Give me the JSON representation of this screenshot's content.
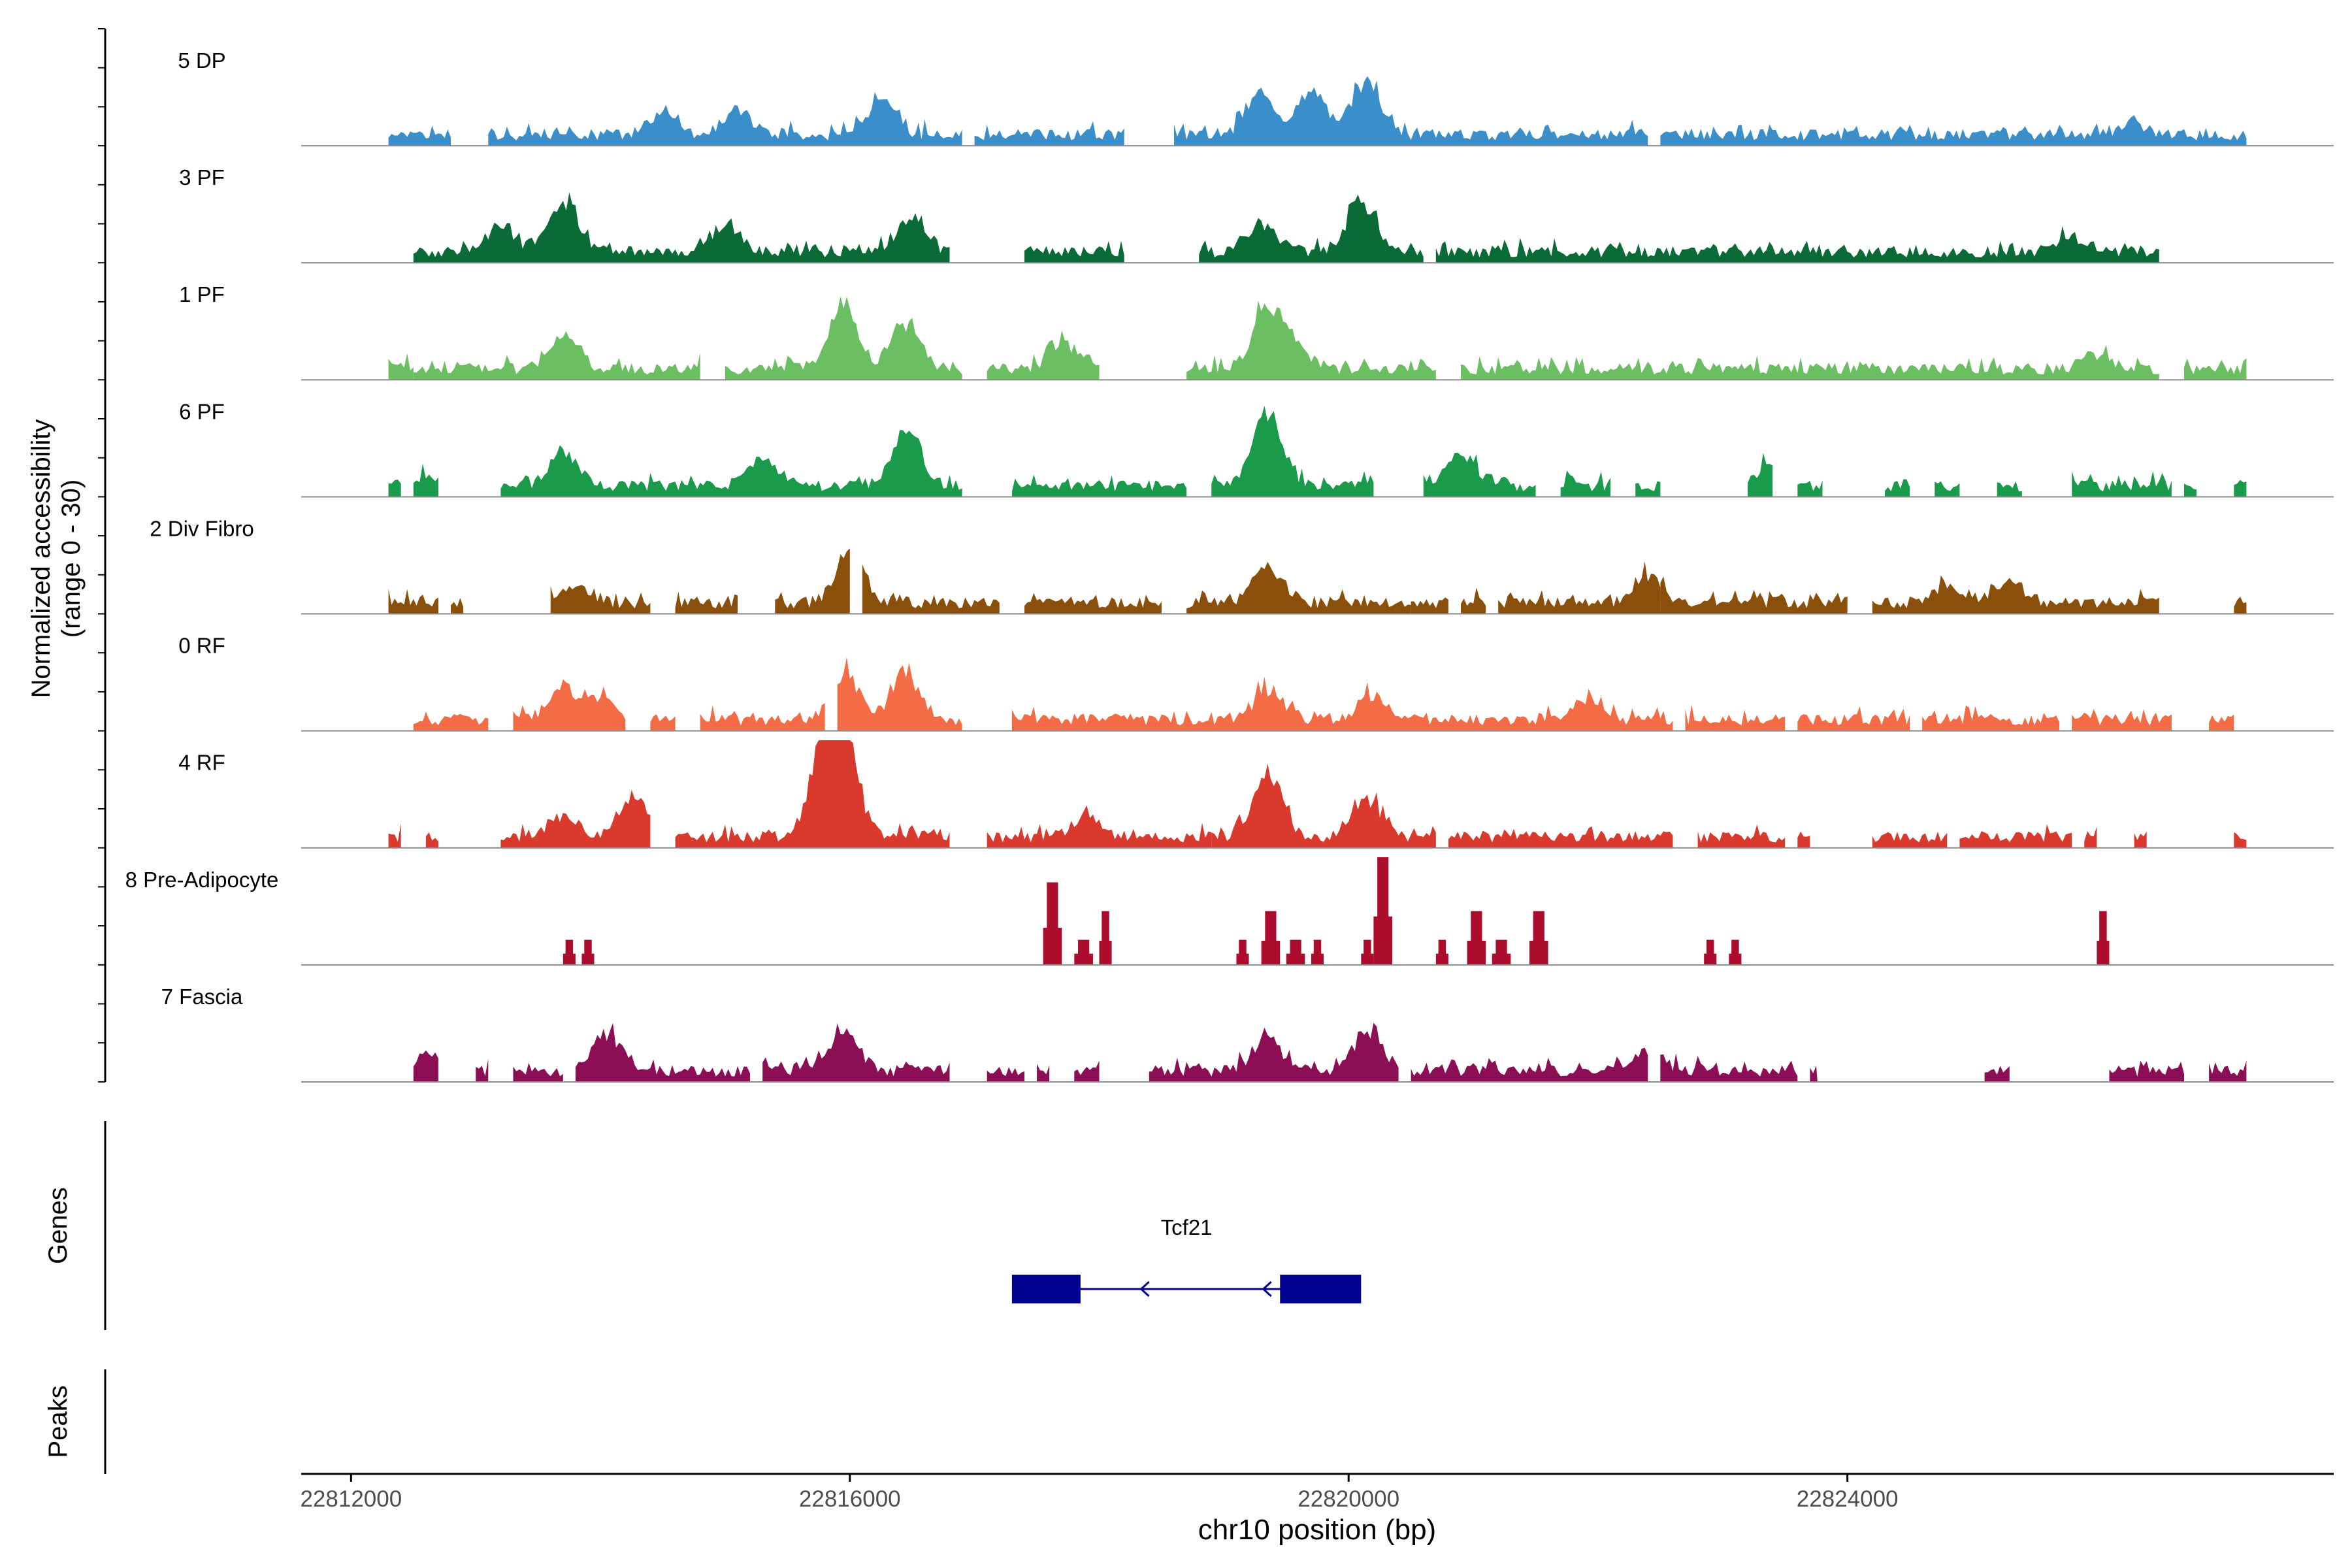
{
  "chart_data": {
    "type": "area",
    "title": "",
    "ylabel_line1": "Normalized accessibility",
    "ylabel_line2": "(range 0 - 30)",
    "ylim": [
      0,
      30
    ],
    "xlabel": "chr10 position (bp)",
    "xlim": [
      22811600,
      22827900
    ],
    "xticks": [
      {
        "value": 22812000,
        "label": "22812000"
      },
      {
        "value": 22816000,
        "label": "22816000"
      },
      {
        "value": 22820000,
        "label": "22820000"
      },
      {
        "value": 22824000,
        "label": "22824000"
      }
    ],
    "series": [
      {
        "name": "5 DP",
        "color": "#3A8FCB",
        "style": "dense",
        "seed": 5,
        "segments": [
          [
            22812300,
            22812800
          ],
          [
            22813100,
            22816900
          ],
          [
            22817000,
            22818200
          ],
          [
            22818600,
            22822400
          ],
          [
            22822500,
            22827200
          ]
        ],
        "peaks": [
          [
            22816250,
            11
          ],
          [
            22819300,
            12
          ],
          [
            22819700,
            14
          ],
          [
            22820150,
            17
          ],
          [
            22815100,
            8
          ],
          [
            22814500,
            7
          ],
          [
            22826300,
            4
          ]
        ]
      },
      {
        "name": "3 PF",
        "color": "#0B6B37",
        "style": "dense",
        "seed": 3,
        "segments": [
          [
            22812500,
            22816800
          ],
          [
            22817400,
            22818200
          ],
          [
            22818800,
            22820600
          ],
          [
            22820700,
            22826500
          ]
        ],
        "peaks": [
          [
            22813700,
            16
          ],
          [
            22820100,
            16
          ],
          [
            22816500,
            11
          ],
          [
            22815000,
            9
          ],
          [
            22819300,
            10
          ],
          [
            22813200,
            8
          ],
          [
            22825800,
            5
          ]
        ]
      },
      {
        "name": "1 PF",
        "color": "#6BBF62",
        "style": "dense",
        "seed": 1,
        "segments": [
          [
            22812300,
            22812500
          ],
          [
            22812500,
            22814800
          ],
          [
            22815000,
            22816900
          ],
          [
            22817100,
            22818000
          ],
          [
            22818700,
            22820700
          ],
          [
            22820900,
            22826500
          ],
          [
            22826700,
            22827200
          ]
        ],
        "peaks": [
          [
            22815950,
            21
          ],
          [
            22816450,
            15
          ],
          [
            22819350,
            20
          ],
          [
            22813700,
            11
          ],
          [
            22817700,
            7
          ],
          [
            22819600,
            6
          ],
          [
            22826000,
            4
          ]
        ]
      },
      {
        "name": "6 PF",
        "color": "#1A9A4B",
        "style": "dense",
        "seed": 6,
        "segments": [
          [
            22812300,
            22812400
          ],
          [
            22812500,
            22812700
          ],
          [
            22813200,
            22816900
          ],
          [
            22817300,
            22818700
          ],
          [
            22818900,
            22820200
          ],
          [
            22820600,
            22821500
          ],
          [
            22821700,
            22822100
          ],
          [
            22822300,
            22822500
          ],
          [
            22823200,
            22823400
          ],
          [
            22823600,
            22823800
          ],
          [
            22824300,
            22824500
          ],
          [
            22824700,
            22824900
          ],
          [
            22825200,
            22825400
          ],
          [
            22825800,
            22826600
          ],
          [
            22826700,
            22826800
          ],
          [
            22827100,
            22827200
          ]
        ],
        "peaks": [
          [
            22819350,
            22
          ],
          [
            22816450,
            18
          ],
          [
            22813700,
            11
          ],
          [
            22815300,
            9
          ],
          [
            22820900,
            10
          ],
          [
            22823400,
            8
          ],
          [
            22812600,
            3
          ]
        ]
      },
      {
        "name": "2 Div Fibro",
        "color": "#8A4F0A",
        "style": "dense",
        "seed": 2,
        "segments": [
          [
            22812300,
            22812700
          ],
          [
            22812800,
            22812900
          ],
          [
            22813600,
            22814400
          ],
          [
            22814600,
            22815100
          ],
          [
            22815400,
            22816000
          ],
          [
            22816100,
            22817200
          ],
          [
            22817400,
            22818500
          ],
          [
            22818700,
            22820500
          ],
          [
            22820500,
            22820800
          ],
          [
            22820900,
            22821100
          ],
          [
            22821200,
            22822500
          ],
          [
            22822500,
            22824000
          ],
          [
            22824200,
            22826500
          ],
          [
            22827100,
            22827200
          ]
        ],
        "peaks": [
          [
            22816000,
            16
          ],
          [
            22819350,
            12
          ],
          [
            22822400,
            9
          ],
          [
            22825300,
            7
          ],
          [
            22824800,
            5
          ],
          [
            22813800,
            5
          ]
        ]
      },
      {
        "name": "0 RF",
        "color": "#F36C45",
        "style": "dense",
        "seed": 7,
        "segments": [
          [
            22812500,
            22813100
          ],
          [
            22813300,
            22814200
          ],
          [
            22814400,
            22814600
          ],
          [
            22814800,
            22815800
          ],
          [
            22815900,
            22816900
          ],
          [
            22817300,
            22819200
          ],
          [
            22819200,
            22822600
          ],
          [
            22822700,
            22823500
          ],
          [
            22823600,
            22824500
          ],
          [
            22824600,
            22825700
          ],
          [
            22825800,
            22826600
          ],
          [
            22826900,
            22827100
          ]
        ],
        "peaks": [
          [
            22815950,
            15
          ],
          [
            22816450,
            14
          ],
          [
            22813700,
            10
          ],
          [
            22814000,
            8
          ],
          [
            22819350,
            10
          ],
          [
            22820200,
            8
          ],
          [
            22821900,
            7
          ]
        ]
      },
      {
        "name": "4 RF",
        "color": "#D93A2D",
        "style": "dense",
        "seed": 4,
        "segments": [
          [
            22812300,
            22812400
          ],
          [
            22812600,
            22812700
          ],
          [
            22813200,
            22814400
          ],
          [
            22814600,
            22816800
          ],
          [
            22817100,
            22818900
          ],
          [
            22818900,
            22820700
          ],
          [
            22820800,
            22822600
          ],
          [
            22822800,
            22823500
          ],
          [
            22823600,
            22823700
          ],
          [
            22824200,
            22824800
          ],
          [
            22824900,
            22825800
          ],
          [
            22825900,
            22826000
          ],
          [
            22826300,
            22826400
          ],
          [
            22827100,
            22827200
          ]
        ],
        "peaks": [
          [
            22815800,
            28
          ],
          [
            22815950,
            30
          ],
          [
            22819350,
            20
          ],
          [
            22820150,
            12
          ],
          [
            22814250,
            12
          ],
          [
            22813700,
            7
          ],
          [
            22817900,
            7
          ]
        ]
      },
      {
        "name": "8 Pre-Adipocyte",
        "color": "#AC0D2C",
        "style": "blocks",
        "seed": 8,
        "blocks": [
          [
            22813700,
            22813800,
            7
          ],
          [
            22813850,
            22813950,
            7
          ],
          [
            22817550,
            22817700,
            23
          ],
          [
            22817800,
            22817950,
            7
          ],
          [
            22818000,
            22818100,
            15
          ],
          [
            22819100,
            22819200,
            7
          ],
          [
            22819300,
            22819450,
            15
          ],
          [
            22819500,
            22819650,
            7
          ],
          [
            22819700,
            22819800,
            7
          ],
          [
            22820100,
            22820200,
            7
          ],
          [
            22820200,
            22820350,
            30
          ],
          [
            22820700,
            22820800,
            7
          ],
          [
            22820950,
            22821100,
            15
          ],
          [
            22821150,
            22821300,
            7
          ],
          [
            22821450,
            22821600,
            15
          ],
          [
            22822850,
            22822950,
            7
          ],
          [
            22823050,
            22823150,
            7
          ],
          [
            22826000,
            22826100,
            15
          ]
        ]
      },
      {
        "name": "7 Fascia",
        "color": "#8C0E55",
        "style": "dense",
        "seed": 9,
        "segments": [
          [
            22812500,
            22812700
          ],
          [
            22813000,
            22813100
          ],
          [
            22813300,
            22813700
          ],
          [
            22813800,
            22815200
          ],
          [
            22815300,
            22816800
          ],
          [
            22817100,
            22817400
          ],
          [
            22817500,
            22817600
          ],
          [
            22817800,
            22818000
          ],
          [
            22818400,
            22820400
          ],
          [
            22820500,
            22822400
          ],
          [
            22822500,
            22823600
          ],
          [
            22823700,
            22823700
          ],
          [
            22825100,
            22825300
          ],
          [
            22826100,
            22826700
          ],
          [
            22826900,
            22827200
          ]
        ],
        "peaks": [
          [
            22814050,
            12
          ],
          [
            22815950,
            13
          ],
          [
            22819350,
            10
          ],
          [
            22820150,
            13
          ],
          [
            22822400,
            7
          ],
          [
            22812600,
            5
          ]
        ]
      }
    ],
    "genes": [
      {
        "name": "Tcf21",
        "start": 22817300,
        "end": 22820100,
        "strand": "-",
        "exons": [
          [
            22817300,
            22817850
          ],
          [
            22819450,
            22820100
          ]
        ],
        "color": "#000091"
      }
    ],
    "panel_labels": {
      "genes": "Genes",
      "peaks": "Peaks"
    }
  }
}
